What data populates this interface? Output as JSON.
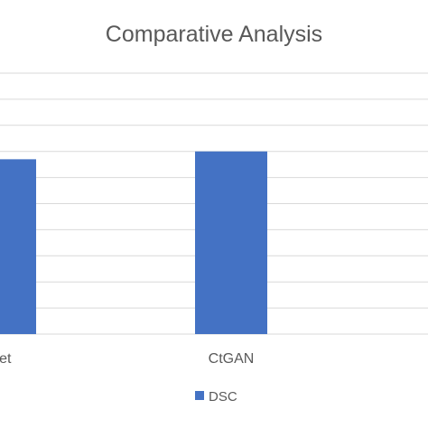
{
  "chart_data": {
    "type": "bar",
    "title": "Comparative Analysis",
    "categories": [
      "Net",
      "CtGAN"
    ],
    "series": [
      {
        "name": "DSC",
        "values": [
          0.67,
          0.7
        ],
        "color": "#4472C4"
      }
    ],
    "xlabel": "",
    "ylabel": "",
    "ylim": [
      0,
      1
    ],
    "grid": true,
    "grid_color": "#D9D9D9",
    "legend": "bottom"
  }
}
